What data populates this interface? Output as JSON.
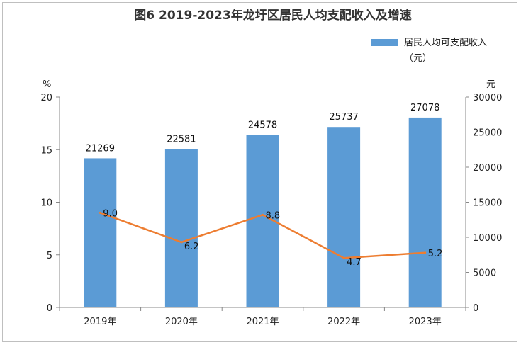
{
  "chart_data": {
    "type": "bar",
    "title": "图6  2019-2023年龙圩区居民人均支配收入及增速",
    "categories": [
      "2019年",
      "2020年",
      "2021年",
      "2022年",
      "2023年"
    ],
    "series": [
      {
        "name": "居民人均可支配收入（元）",
        "type": "bar",
        "axis": "right",
        "values": [
          21269,
          22581,
          24578,
          25737,
          27078
        ],
        "color": "#5b9bd5"
      },
      {
        "name": "",
        "type": "line",
        "axis": "left",
        "values": [
          9.0,
          6.2,
          8.8,
          4.7,
          5.2
        ],
        "color": "#ed7d31"
      }
    ],
    "value_labels": {
      "bars": [
        "21269",
        "22581",
        "24578",
        "25737",
        "27078"
      ],
      "line": [
        "9.0",
        "6.2",
        "8.8",
        "4.7",
        "5.2"
      ]
    },
    "left_axis": {
      "unit": "%",
      "ylim": [
        0,
        20
      ],
      "ticks": [
        0,
        5,
        10,
        15,
        20
      ]
    },
    "right_axis": {
      "unit": "元",
      "ylim": [
        0,
        30000
      ],
      "ticks": [
        0,
        5000,
        10000,
        15000,
        20000,
        25000,
        30000
      ]
    },
    "legend": {
      "placement": "top-right",
      "line1": "居民人均可支配收入",
      "line2": "（元）"
    },
    "grid": false
  }
}
